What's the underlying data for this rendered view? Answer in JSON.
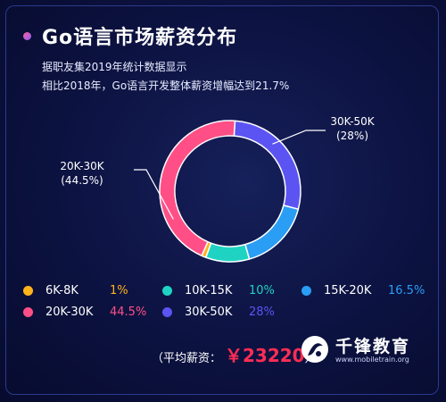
{
  "title": "Go语言市场薪资分布",
  "subtitle_lines": [
    "据职友集2019年统计数据显示",
    "相比2018年，Go语言开发整体薪资增幅达到21.7%"
  ],
  "average": {
    "label": "（平均薪资：",
    "value": "￥23220",
    "suffix": "）"
  },
  "logo": {
    "name": "千锋教育",
    "url": "www.mobiletrain.org"
  },
  "colors": {
    "background": "#0c1240",
    "average_value": "#ff2d55"
  },
  "chart_data": {
    "type": "pie",
    "donut": true,
    "categories": [
      "6K-8K",
      "10K-15K",
      "15K-20K",
      "20K-30K",
      "30K-50K"
    ],
    "values": [
      1,
      10,
      16.5,
      44.5,
      28
    ],
    "value_labels": [
      "1%",
      "10%",
      "16.5%",
      "44.5%",
      "28%"
    ],
    "colors": [
      "#ffb31a",
      "#1fd3c2",
      "#2a9df4",
      "#ff4f86",
      "#5b54f2"
    ],
    "legend": "bottom",
    "callouts": [
      {
        "category": "20K-30K",
        "label": "20K-30K",
        "value_text": "(44.5%)"
      },
      {
        "category": "30K-50K",
        "label": "30K-50K",
        "value_text": "(28%)"
      }
    ]
  }
}
